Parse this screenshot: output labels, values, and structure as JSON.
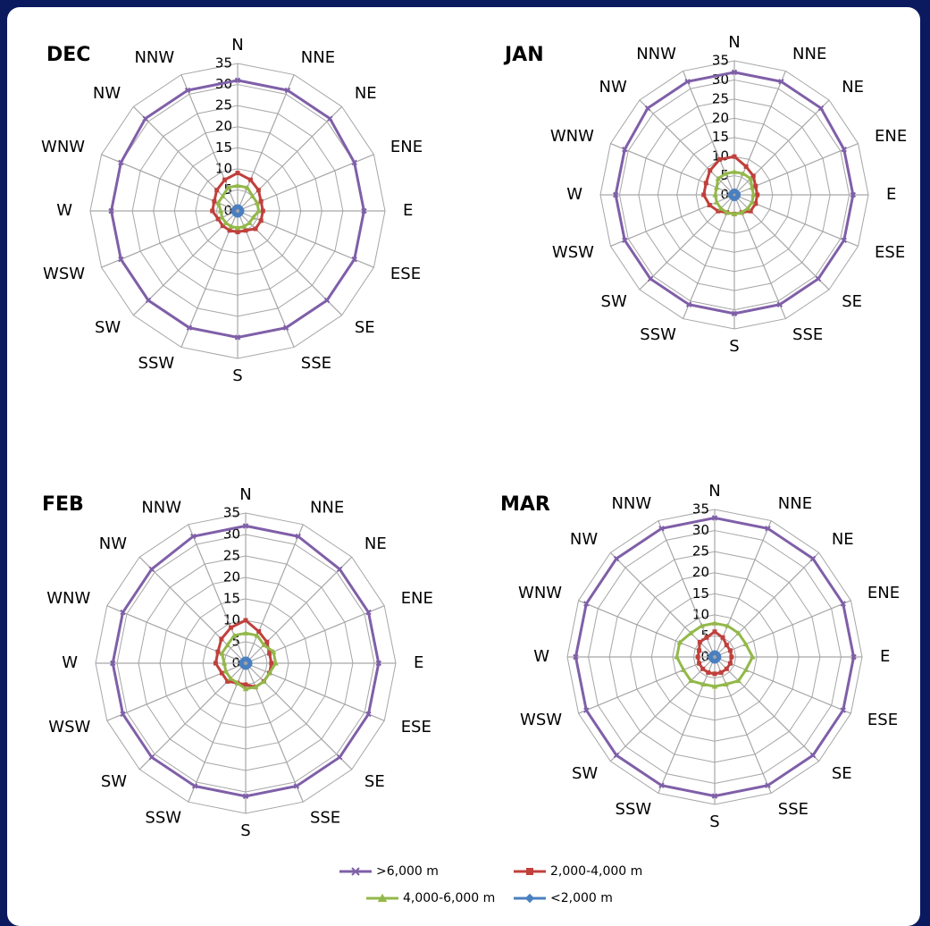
{
  "chart_data": [
    {
      "type": "radar",
      "title": "DEC",
      "categories": [
        "N",
        "NNE",
        "NE",
        "ENE",
        "E",
        "ESE",
        "SE",
        "SSE",
        "S",
        "SSW",
        "SW",
        "WSW",
        "W",
        "WNW",
        "NW",
        "NNW"
      ],
      "rlim": [
        0,
        35
      ],
      "rticks": [
        0,
        5,
        10,
        15,
        20,
        25,
        30,
        35
      ],
      "grid": true,
      "series": [
        {
          "name": ">6,000 m",
          "color": "#7f5fa8",
          "marker": "x",
          "values": [
            31,
            31,
            31,
            30,
            30,
            30,
            30,
            30,
            30,
            30,
            30,
            30,
            30,
            30,
            31,
            31
          ]
        },
        {
          "name": "2,000-4,000 m",
          "color": "#c0403c",
          "marker": "square",
          "values": [
            9,
            8,
            7,
            6,
            6,
            6,
            6,
            5,
            5,
            5,
            5,
            5,
            6,
            6,
            7,
            8
          ]
        },
        {
          "name": "4,000-6,000 m",
          "color": "#93b84a",
          "marker": "triangle",
          "values": [
            6,
            6,
            5,
            5,
            5,
            4,
            4,
            4,
            4,
            4,
            4,
            4,
            4,
            5,
            5,
            6
          ]
        },
        {
          "name": "<2,000 m",
          "color": "#4a7fc0",
          "marker": "diamond",
          "values": [
            1,
            1,
            1,
            1,
            1,
            1,
            1,
            1,
            1,
            1,
            1,
            1,
            1,
            1,
            1,
            1
          ]
        }
      ]
    },
    {
      "type": "radar",
      "title": "JAN",
      "categories": [
        "N",
        "NNE",
        "NE",
        "ENE",
        "E",
        "ESE",
        "SE",
        "SSE",
        "S",
        "SSW",
        "SW",
        "WSW",
        "W",
        "WNW",
        "NW",
        "NNW"
      ],
      "rlim": [
        0,
        35
      ],
      "rticks": [
        0,
        5,
        10,
        15,
        20,
        25,
        30,
        35
      ],
      "grid": true,
      "series": [
        {
          "name": ">6,000 m",
          "color": "#7f5fa8",
          "marker": "x",
          "values": [
            32,
            32,
            32,
            31,
            31,
            31,
            31,
            31,
            31,
            31,
            31,
            31,
            31,
            31,
            32,
            32
          ]
        },
        {
          "name": "2,000-4,000 m",
          "color": "#c0403c",
          "marker": "square",
          "values": [
            10,
            8,
            7,
            6,
            6,
            6,
            6,
            5,
            5,
            5,
            6,
            7,
            8,
            8,
            9,
            10
          ]
        },
        {
          "name": "4,000-6,000 m",
          "color": "#93b84a",
          "marker": "triangle",
          "values": [
            6,
            6,
            6,
            5,
            5,
            5,
            5,
            5,
            5,
            5,
            5,
            5,
            5,
            5,
            6,
            6
          ]
        },
        {
          "name": "<2,000 m",
          "color": "#4a7fc0",
          "marker": "diamond",
          "values": [
            1,
            1,
            1,
            1,
            1,
            1,
            1,
            1,
            1,
            1,
            1,
            1,
            1,
            1,
            1,
            1
          ]
        }
      ]
    },
    {
      "type": "radar",
      "title": "FEB",
      "categories": [
        "N",
        "NNE",
        "NE",
        "ENE",
        "E",
        "ESE",
        "SE",
        "SSE",
        "S",
        "SSW",
        "SW",
        "WSW",
        "W",
        "WNW",
        "NW",
        "NNW"
      ],
      "rlim": [
        0,
        35
      ],
      "rticks": [
        0,
        5,
        10,
        15,
        20,
        25,
        30,
        35
      ],
      "grid": true,
      "series": [
        {
          "name": ">6,000 m",
          "color": "#7f5fa8",
          "marker": "x",
          "values": [
            32,
            32,
            31,
            31,
            31,
            31,
            31,
            31,
            31,
            31,
            31,
            31,
            31,
            31,
            31,
            32
          ]
        },
        {
          "name": "2,000-4,000 m",
          "color": "#c0403c",
          "marker": "square",
          "values": [
            10,
            8,
            7,
            6,
            6,
            6,
            6,
            6,
            5,
            5,
            6,
            6,
            7,
            7,
            8,
            9
          ]
        },
        {
          "name": "4,000-6,000 m",
          "color": "#93b84a",
          "marker": "triangle",
          "values": [
            7,
            7,
            6,
            7,
            7,
            6,
            6,
            6,
            6,
            5,
            5,
            5,
            5,
            6,
            6,
            7
          ]
        },
        {
          "name": "<2,000 m",
          "color": "#4a7fc0",
          "marker": "diamond",
          "values": [
            1,
            1,
            1,
            1,
            1,
            1,
            1,
            1,
            1,
            1,
            1,
            1,
            1,
            1,
            1,
            1
          ]
        }
      ]
    },
    {
      "type": "radar",
      "title": "MAR",
      "categories": [
        "N",
        "NNE",
        "NE",
        "ENE",
        "E",
        "ESE",
        "SE",
        "SSE",
        "S",
        "SSW",
        "SW",
        "WSW",
        "W",
        "WNW",
        "NW",
        "NNW"
      ],
      "rlim": [
        0,
        35
      ],
      "rticks": [
        0,
        5,
        10,
        15,
        20,
        25,
        30,
        35
      ],
      "grid": true,
      "series": [
        {
          "name": ">6,000 m",
          "color": "#7f5fa8",
          "marker": "x",
          "values": [
            33,
            33,
            33,
            33,
            33,
            33,
            33,
            33,
            33,
            33,
            33,
            33,
            33,
            33,
            33,
            33
          ]
        },
        {
          "name": "2,000-4,000 m",
          "color": "#c0403c",
          "marker": "square",
          "values": [
            6,
            5,
            4,
            4,
            4,
            4,
            4,
            4,
            4,
            4,
            4,
            4,
            4,
            4,
            5,
            5
          ]
        },
        {
          "name": "4,000-6,000 m",
          "color": "#93b84a",
          "marker": "triangle",
          "values": [
            8,
            8,
            8,
            8,
            9,
            8,
            8,
            7,
            7,
            7,
            8,
            8,
            9,
            9,
            8,
            8
          ]
        },
        {
          "name": "<2,000 m",
          "color": "#4a7fc0",
          "marker": "diamond",
          "values": [
            1,
            1,
            1,
            1,
            1,
            1,
            1,
            1,
            1,
            1,
            1,
            1,
            1,
            1,
            1,
            1
          ]
        }
      ]
    }
  ]
}
